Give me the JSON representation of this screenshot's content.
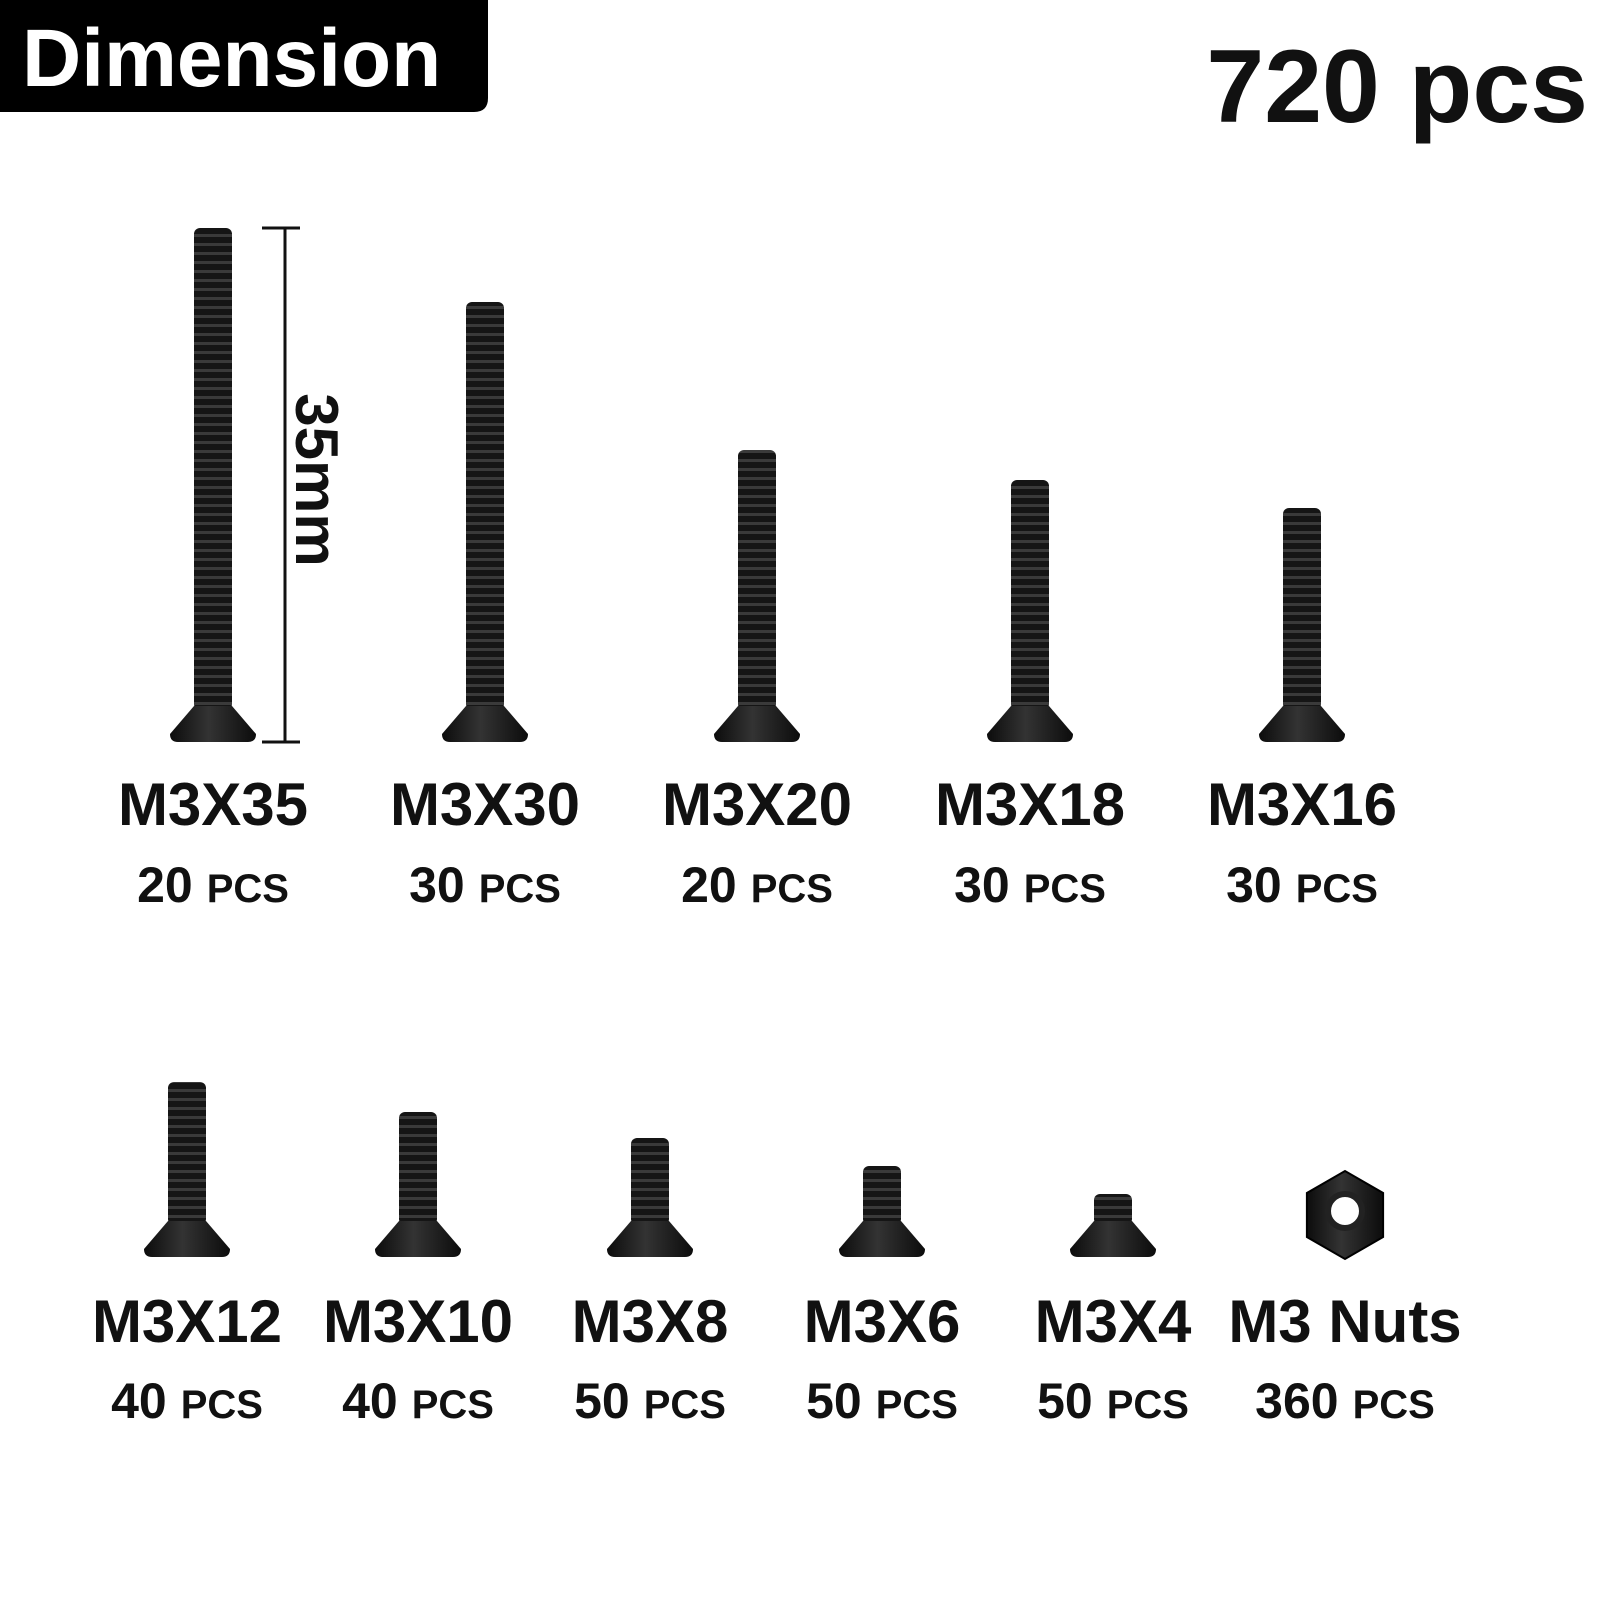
{
  "header": {
    "badge": "Dimension",
    "total": "720 pcs"
  },
  "dimension_label": "35mm",
  "items": [
    {
      "name": "M3X35",
      "quantity": "20",
      "unit": "PCS"
    },
    {
      "name": "M3X30",
      "quantity": "30",
      "unit": "PCS"
    },
    {
      "name": "M3X20",
      "quantity": "20",
      "unit": "PCS"
    },
    {
      "name": "M3X18",
      "quantity": "30",
      "unit": "PCS"
    },
    {
      "name": "M3X16",
      "quantity": "30",
      "unit": "PCS"
    },
    {
      "name": "M3X12",
      "quantity": "40",
      "unit": "PCS"
    },
    {
      "name": "M3X10",
      "quantity": "40",
      "unit": "PCS"
    },
    {
      "name": "M3X8",
      "quantity": "50",
      "unit": "PCS"
    },
    {
      "name": "M3X6",
      "quantity": "50",
      "unit": "PCS"
    },
    {
      "name": "M3X4",
      "quantity": "50",
      "unit": "PCS"
    },
    {
      "name": "M3 Nuts",
      "quantity": "360",
      "unit": "PCS"
    }
  ]
}
